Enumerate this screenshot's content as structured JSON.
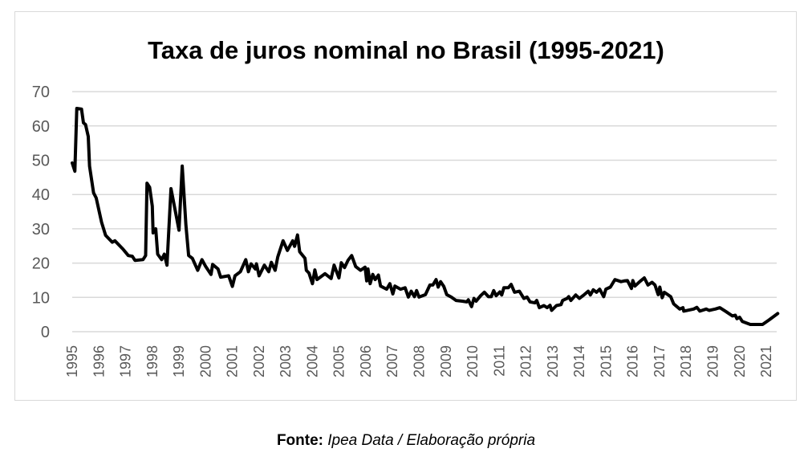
{
  "chart_data": {
    "type": "line",
    "title": "Taxa de juros nominal no Brasil (1995-2021)",
    "xlabel": "",
    "ylabel": "",
    "ylim": [
      0,
      70
    ],
    "yticks": [
      0,
      10,
      20,
      30,
      40,
      50,
      60,
      70
    ],
    "xticks": [
      "1995",
      "1996",
      "1997",
      "1998",
      "1999",
      "2000",
      "2001",
      "2002",
      "2003",
      "2004",
      "2005",
      "2006",
      "2007",
      "2008",
      "2009",
      "2010",
      "2011",
      "2012",
      "2013",
      "2014",
      "2015",
      "2016",
      "2017",
      "2018",
      "2019",
      "2020",
      "2021"
    ],
    "grid": true,
    "legend": "none",
    "series": [
      {
        "name": "Taxa de juros nominal",
        "color": "#000000",
        "points": [
          [
            1995.0,
            49.2
          ],
          [
            1995.1,
            46.8
          ],
          [
            1995.17,
            65.1
          ],
          [
            1995.35,
            64.9
          ],
          [
            1995.42,
            60.9
          ],
          [
            1995.5,
            60.4
          ],
          [
            1995.6,
            56.9
          ],
          [
            1995.65,
            48.3
          ],
          [
            1995.8,
            40.5
          ],
          [
            1995.9,
            39.0
          ],
          [
            1996.1,
            31.9
          ],
          [
            1996.25,
            28.1
          ],
          [
            1996.5,
            26.1
          ],
          [
            1996.6,
            26.5
          ],
          [
            1996.9,
            24.1
          ],
          [
            1997.1,
            22.2
          ],
          [
            1997.25,
            22.0
          ],
          [
            1997.35,
            20.8
          ],
          [
            1997.65,
            21.0
          ],
          [
            1997.75,
            22.2
          ],
          [
            1997.8,
            43.3
          ],
          [
            1997.9,
            42.1
          ],
          [
            1998.0,
            36.6
          ],
          [
            1998.03,
            28.8
          ],
          [
            1998.13,
            30.0
          ],
          [
            1998.2,
            22.6
          ],
          [
            1998.35,
            21.0
          ],
          [
            1998.45,
            22.6
          ],
          [
            1998.55,
            19.4
          ],
          [
            1998.7,
            41.7
          ],
          [
            1999.0,
            29.6
          ],
          [
            1999.12,
            48.3
          ],
          [
            1999.26,
            31.1
          ],
          [
            1999.36,
            22.2
          ],
          [
            1999.5,
            21.4
          ],
          [
            1999.7,
            17.9
          ],
          [
            1999.86,
            21.0
          ],
          [
            2000.0,
            19.0
          ],
          [
            2000.2,
            16.7
          ],
          [
            2000.26,
            19.6
          ],
          [
            2000.46,
            18.3
          ],
          [
            2000.56,
            15.9
          ],
          [
            2000.86,
            16.3
          ],
          [
            2001.0,
            13.2
          ],
          [
            2001.1,
            16.3
          ],
          [
            2001.3,
            17.5
          ],
          [
            2001.5,
            21.0
          ],
          [
            2001.6,
            17.5
          ],
          [
            2001.7,
            19.8
          ],
          [
            2001.86,
            18.3
          ],
          [
            2001.9,
            19.8
          ],
          [
            2002.0,
            16.3
          ],
          [
            2002.2,
            19.4
          ],
          [
            2002.36,
            17.5
          ],
          [
            2002.46,
            20.2
          ],
          [
            2002.6,
            17.9
          ],
          [
            2002.7,
            21.8
          ],
          [
            2002.9,
            26.5
          ],
          [
            2003.06,
            23.7
          ],
          [
            2003.26,
            26.5
          ],
          [
            2003.33,
            24.9
          ],
          [
            2003.44,
            28.2
          ],
          [
            2003.52,
            23.3
          ],
          [
            2003.72,
            21.4
          ],
          [
            2003.77,
            17.9
          ],
          [
            2003.87,
            17.1
          ],
          [
            2004.0,
            14.0
          ],
          [
            2004.09,
            18.0
          ],
          [
            2004.17,
            15.2
          ],
          [
            2004.47,
            16.9
          ],
          [
            2004.7,
            15.5
          ],
          [
            2004.81,
            19.4
          ],
          [
            2004.99,
            15.7
          ],
          [
            2005.08,
            20.1
          ],
          [
            2005.2,
            18.7
          ],
          [
            2005.33,
            20.8
          ],
          [
            2005.47,
            22.2
          ],
          [
            2005.62,
            19.0
          ],
          [
            2005.8,
            17.9
          ],
          [
            2005.97,
            18.8
          ],
          [
            2006.03,
            14.8
          ],
          [
            2006.08,
            18.3
          ],
          [
            2006.16,
            14.0
          ],
          [
            2006.26,
            16.7
          ],
          [
            2006.35,
            15.2
          ],
          [
            2006.47,
            16.5
          ],
          [
            2006.55,
            13.3
          ],
          [
            2006.78,
            12.4
          ],
          [
            2006.9,
            14.0
          ],
          [
            2007.01,
            11.0
          ],
          [
            2007.09,
            13.3
          ],
          [
            2007.3,
            12.4
          ],
          [
            2007.47,
            12.8
          ],
          [
            2007.59,
            10.1
          ],
          [
            2007.7,
            11.8
          ],
          [
            2007.82,
            10.2
          ],
          [
            2007.9,
            12.0
          ],
          [
            2007.99,
            10.1
          ],
          [
            2008.23,
            10.8
          ],
          [
            2008.4,
            13.6
          ],
          [
            2008.51,
            13.6
          ],
          [
            2008.63,
            15.2
          ],
          [
            2008.71,
            13.0
          ],
          [
            2008.8,
            14.6
          ],
          [
            2008.92,
            13.2
          ],
          [
            2009.03,
            10.8
          ],
          [
            2009.2,
            10.1
          ],
          [
            2009.38,
            9.1
          ],
          [
            2009.61,
            8.9
          ],
          [
            2009.78,
            8.7
          ],
          [
            2009.84,
            9.3
          ],
          [
            2009.96,
            7.3
          ],
          [
            2010.05,
            9.7
          ],
          [
            2010.13,
            8.9
          ],
          [
            2010.3,
            10.5
          ],
          [
            2010.44,
            11.5
          ],
          [
            2010.59,
            10.2
          ],
          [
            2010.7,
            10.2
          ],
          [
            2010.79,
            12.0
          ],
          [
            2010.88,
            10.5
          ],
          [
            2011.02,
            11.6
          ],
          [
            2011.09,
            10.7
          ],
          [
            2011.17,
            12.8
          ],
          [
            2011.34,
            12.8
          ],
          [
            2011.44,
            13.8
          ],
          [
            2011.57,
            11.5
          ],
          [
            2011.75,
            11.8
          ],
          [
            2011.92,
            9.7
          ],
          [
            2012.04,
            10.1
          ],
          [
            2012.15,
            8.7
          ],
          [
            2012.33,
            8.4
          ],
          [
            2012.4,
            9.1
          ],
          [
            2012.5,
            7.0
          ],
          [
            2012.67,
            7.6
          ],
          [
            2012.79,
            7.0
          ],
          [
            2012.9,
            7.7
          ],
          [
            2012.96,
            6.2
          ],
          [
            2013.14,
            7.6
          ],
          [
            2013.31,
            7.9
          ],
          [
            2013.37,
            9.1
          ],
          [
            2013.54,
            9.7
          ],
          [
            2013.6,
            10.2
          ],
          [
            2013.68,
            9.1
          ],
          [
            2013.86,
            10.7
          ],
          [
            2014.0,
            9.7
          ],
          [
            2014.18,
            10.8
          ],
          [
            2014.33,
            11.8
          ],
          [
            2014.41,
            10.7
          ],
          [
            2014.52,
            12.2
          ],
          [
            2014.64,
            11.5
          ],
          [
            2014.76,
            12.4
          ],
          [
            2014.91,
            10.2
          ],
          [
            2014.99,
            12.4
          ],
          [
            2015.16,
            13.0
          ],
          [
            2015.33,
            15.2
          ],
          [
            2015.56,
            14.6
          ],
          [
            2015.68,
            14.8
          ],
          [
            2015.8,
            14.9
          ],
          [
            2015.95,
            12.6
          ],
          [
            2016.0,
            14.9
          ],
          [
            2016.08,
            13.3
          ],
          [
            2016.26,
            14.6
          ],
          [
            2016.43,
            15.7
          ],
          [
            2016.57,
            13.6
          ],
          [
            2016.72,
            14.4
          ],
          [
            2016.83,
            13.6
          ],
          [
            2016.95,
            10.8
          ],
          [
            2017.01,
            13.0
          ],
          [
            2017.1,
            9.9
          ],
          [
            2017.18,
            11.5
          ],
          [
            2017.42,
            10.2
          ],
          [
            2017.53,
            8.1
          ],
          [
            2017.76,
            6.6
          ],
          [
            2017.88,
            7.0
          ],
          [
            2017.91,
            6.0
          ],
          [
            2018.28,
            6.6
          ],
          [
            2018.4,
            7.1
          ],
          [
            2018.51,
            6.0
          ],
          [
            2018.75,
            6.6
          ],
          [
            2018.86,
            6.2
          ],
          [
            2019.09,
            6.6
          ],
          [
            2019.26,
            7.0
          ],
          [
            2019.5,
            5.8
          ],
          [
            2019.73,
            4.6
          ],
          [
            2019.84,
            4.8
          ],
          [
            2019.9,
            3.8
          ],
          [
            2020.0,
            4.2
          ],
          [
            2020.1,
            3.0
          ],
          [
            2020.4,
            2.1
          ],
          [
            2020.86,
            2.1
          ],
          [
            2021.1,
            3.4
          ],
          [
            2021.43,
            5.3
          ]
        ]
      }
    ]
  },
  "footer": {
    "label": "Fonte:",
    "source": "Ipea Data / Elaboração própria"
  }
}
